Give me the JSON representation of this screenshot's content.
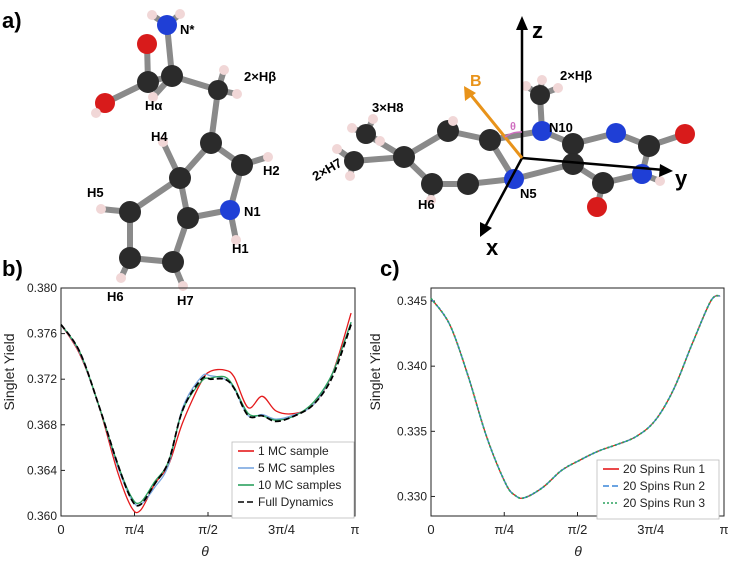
{
  "panel_labels": {
    "a": "a)",
    "b": "b)",
    "c": "c)"
  },
  "molecules": {
    "tryptophan_labels": [
      "N*",
      "Hα",
      "2×Hβ",
      "H4",
      "H2",
      "H5",
      "N1",
      "H1",
      "H6",
      "H7"
    ],
    "flavin_labels": [
      "z",
      "B",
      "θ",
      "2×Hβ",
      "3×H8",
      "N10",
      "2×H7",
      "H6",
      "N5",
      "y",
      "x"
    ]
  },
  "colors": {
    "carbon": "#2b2b2b",
    "nitrogen": "#1f3fd6",
    "oxygen": "#d81b1b",
    "hydrogen": "#f1d7d7",
    "bond": "#8a8a8a",
    "field_arrow": "#e8931a",
    "theta_arc": "#d070c0"
  },
  "chart_data": [
    {
      "id": "b",
      "type": "line",
      "xlabel": "θ",
      "ylabel": "Singlet Yield",
      "xlim": [
        0,
        3.14159
      ],
      "ylim": [
        0.36,
        0.38
      ],
      "xticks": [
        0,
        0.7854,
        1.5708,
        2.3562,
        3.14159
      ],
      "xticklabels": [
        "0",
        "π/4",
        "π/2",
        "3π/4",
        "π"
      ],
      "yticks": [
        0.36,
        0.364,
        0.368,
        0.372,
        0.376,
        0.38
      ],
      "yticklabels": [
        "0.360",
        "0.364",
        "0.368",
        "0.372",
        "0.376",
        "0.380"
      ],
      "legend_position": "bottom-right",
      "x": [
        0,
        0.2,
        0.4,
        0.6,
        0.75,
        0.85,
        1.0,
        1.15,
        1.3,
        1.5,
        1.6,
        1.75,
        1.85,
        2.0,
        2.15,
        2.3,
        2.5,
        2.7,
        2.9,
        3.1
      ],
      "series": [
        {
          "name": "1 MC sample",
          "color": "#e41a1c",
          "dash": "",
          "values": [
            0.3768,
            0.3742,
            0.3698,
            0.364,
            0.3608,
            0.3605,
            0.3628,
            0.3645,
            0.3682,
            0.3718,
            0.3727,
            0.3728,
            0.3722,
            0.3695,
            0.3705,
            0.3692,
            0.369,
            0.3698,
            0.3725,
            0.3778
          ]
        },
        {
          "name": "5 MC samples",
          "color": "#7aa6e0",
          "dash": "",
          "values": [
            0.3768,
            0.3743,
            0.3698,
            0.3645,
            0.3615,
            0.361,
            0.3625,
            0.3645,
            0.3695,
            0.3722,
            0.3723,
            0.372,
            0.3712,
            0.3688,
            0.3689,
            0.3685,
            0.3689,
            0.3698,
            0.3725,
            0.377
          ]
        },
        {
          "name": "10 MC samples",
          "color": "#2ca25f",
          "dash": "",
          "values": [
            0.3768,
            0.3744,
            0.3698,
            0.3647,
            0.3617,
            0.3612,
            0.363,
            0.3648,
            0.3693,
            0.3718,
            0.3721,
            0.3722,
            0.3713,
            0.369,
            0.3688,
            0.3684,
            0.3688,
            0.37,
            0.3725,
            0.377
          ]
        },
        {
          "name": "Full Dynamics",
          "color": "#000000",
          "dash": "6,3",
          "values": [
            0.3768,
            0.3744,
            0.3698,
            0.3647,
            0.3615,
            0.361,
            0.3628,
            0.3648,
            0.3693,
            0.372,
            0.372,
            0.372,
            0.3712,
            0.3688,
            0.3688,
            0.3683,
            0.3688,
            0.3698,
            0.3722,
            0.3768
          ]
        }
      ]
    },
    {
      "id": "c",
      "type": "line",
      "xlabel": "θ",
      "ylabel": "Singlet Yield",
      "xlim": [
        0,
        3.14159
      ],
      "ylim": [
        0.3285,
        0.346
      ],
      "xticks": [
        0,
        0.7854,
        1.5708,
        2.3562,
        3.14159
      ],
      "xticklabels": [
        "0",
        "π/4",
        "π/2",
        "3π/4",
        "π"
      ],
      "yticks": [
        0.33,
        0.335,
        0.34,
        0.345
      ],
      "yticklabels": [
        "0.330",
        "0.335",
        "0.340",
        "0.345"
      ],
      "legend_position": "bottom-right",
      "x": [
        0,
        0.2,
        0.4,
        0.6,
        0.8,
        0.9,
        1.0,
        1.2,
        1.4,
        1.6,
        1.8,
        2.0,
        2.2,
        2.4,
        2.6,
        2.8,
        3.0,
        3.1
      ],
      "series": [
        {
          "name": "20 Spins Run 1",
          "color": "#e41a1c",
          "dash": "",
          "values": [
            0.3452,
            0.3432,
            0.3392,
            0.3345,
            0.331,
            0.3301,
            0.3299,
            0.3307,
            0.332,
            0.3328,
            0.3335,
            0.334,
            0.3346,
            0.3358,
            0.3382,
            0.3417,
            0.345,
            0.3454
          ]
        },
        {
          "name": "20 Spins Run 2",
          "color": "#3a86d8",
          "dash": "6,3",
          "values": [
            0.3452,
            0.3432,
            0.3392,
            0.3345,
            0.331,
            0.3301,
            0.3299,
            0.3307,
            0.332,
            0.3328,
            0.3335,
            0.334,
            0.3346,
            0.3358,
            0.3382,
            0.3417,
            0.345,
            0.3454
          ]
        },
        {
          "name": "20 Spins Run 3",
          "color": "#2ca25f",
          "dash": "2,2",
          "values": [
            0.3452,
            0.3432,
            0.3392,
            0.3345,
            0.331,
            0.3301,
            0.3299,
            0.3307,
            0.332,
            0.3328,
            0.3335,
            0.334,
            0.3346,
            0.3358,
            0.3382,
            0.3417,
            0.345,
            0.3454
          ]
        }
      ]
    }
  ]
}
